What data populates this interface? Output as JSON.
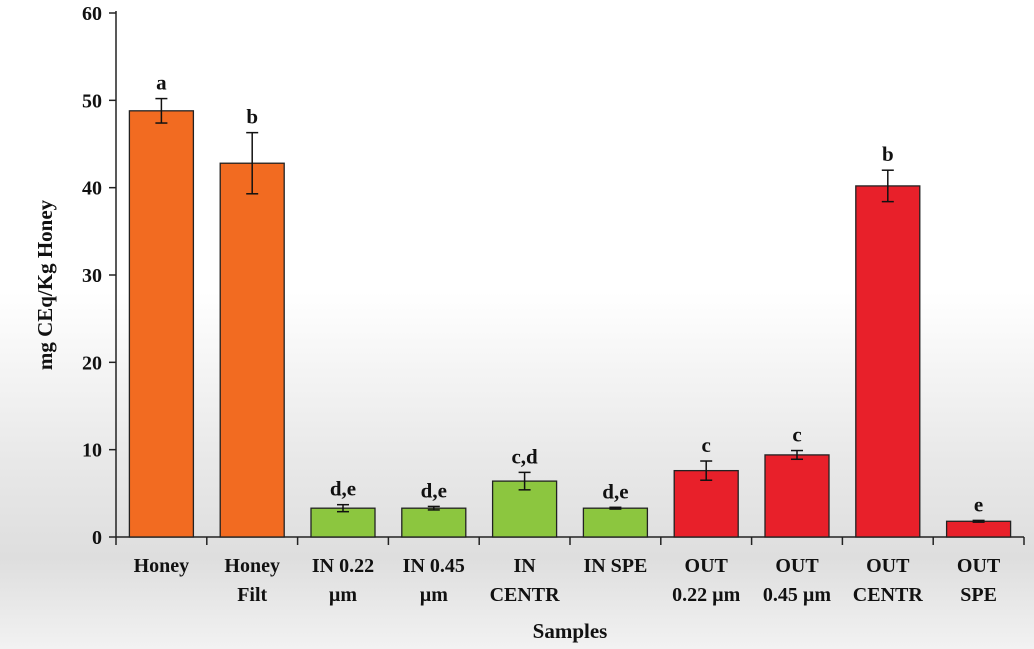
{
  "chart_data": {
    "type": "bar",
    "title": "",
    "xlabel": "Samples",
    "ylabel": "mg CEq/Kg Honey",
    "ylim": [
      0,
      60
    ],
    "yticks": [
      0,
      10,
      20,
      30,
      40,
      50,
      60
    ],
    "legend": "none",
    "grid": false,
    "categories": [
      [
        "Honey"
      ],
      [
        "Honey",
        "Filt"
      ],
      [
        "IN 0.22",
        "µm"
      ],
      [
        "IN 0.45",
        "µm"
      ],
      [
        "IN",
        "CENTR"
      ],
      [
        "IN SPE"
      ],
      [
        "OUT",
        "0.22 µm"
      ],
      [
        "OUT",
        "0.45 µm"
      ],
      [
        "OUT",
        "CENTR"
      ],
      [
        "OUT",
        "SPE"
      ]
    ],
    "values": [
      48.8,
      42.8,
      3.3,
      3.3,
      6.4,
      3.3,
      7.6,
      9.4,
      40.2,
      1.8
    ],
    "errors": [
      1.4,
      3.5,
      0.4,
      0.2,
      1.0,
      0.1,
      1.1,
      0.5,
      1.8,
      0.1
    ],
    "significance": [
      "a",
      "b",
      "d,e",
      "d,e",
      "c,d",
      "d,e",
      "c",
      "c",
      "b",
      "e"
    ],
    "colors": [
      "#F26B21",
      "#F26B21",
      "#8CC63F",
      "#8CC63F",
      "#8CC63F",
      "#8CC63F",
      "#E8202A",
      "#E8202A",
      "#E8202A",
      "#E8202A"
    ]
  }
}
